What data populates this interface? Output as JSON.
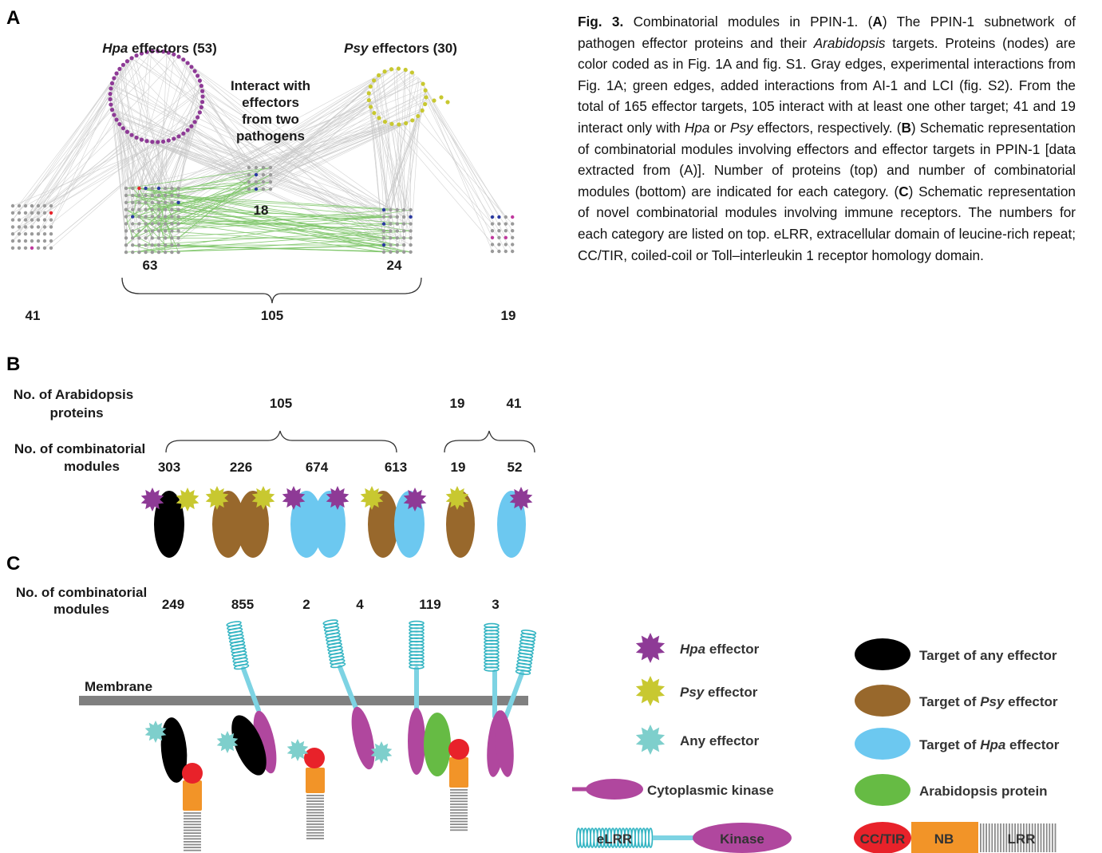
{
  "panels": {
    "a": "A",
    "b": "B",
    "c": "C"
  },
  "panel_a": {
    "hpa_italic": "Hpa",
    "hpa_rest": " effectors (53)",
    "psy_italic": "Psy",
    "psy_rest": " effectors (30)",
    "interact_lines": [
      "Interact with",
      "effectors",
      "from two",
      "pathogens"
    ],
    "n18": "18",
    "n63": "63",
    "n24": "24",
    "n41": "41",
    "n105": "105",
    "n19": "19"
  },
  "panel_b": {
    "arab_lines": [
      "No. of Arabidopsis",
      "proteins"
    ],
    "mod_lines": [
      "No. of combinatorial",
      "modules"
    ],
    "top105": "105",
    "top19": "19",
    "top41": "41",
    "counts": [
      "303",
      "226",
      "674",
      "613",
      "19",
      "52"
    ]
  },
  "panel_c": {
    "mod_lines": [
      "No. of combinatorial",
      "modules"
    ],
    "counts": [
      "249",
      "855",
      "2",
      "4",
      "119",
      "3"
    ],
    "membrane": "Membrane"
  },
  "legend": {
    "hpa_italic": "Hpa",
    "hpa_rest": " effector",
    "psy_italic": "Psy",
    "psy_rest": " effector",
    "any": "Any effector",
    "kinase": "Cytoplasmic kinase",
    "elrr": "eLRR",
    "kinase_domain": "Kinase",
    "target_any": "Target of any effector",
    "target_psy_pre": "Target of ",
    "target_psy_italic": "Psy",
    "target_psy_post": " effector",
    "target_hpa_pre": "Target of ",
    "target_hpa_italic": "Hpa",
    "target_hpa_post": " effector",
    "arab": "Arabidopsis protein",
    "cctir": "CC/TIR",
    "nb": "NB",
    "lrr": "LRR"
  },
  "caption": {
    "fig": "Fig. 3.",
    "s1": " Combinatorial modules in PPIN-1. (",
    "a": "A",
    "s2": ") The PPIN-1 subnetwork of pathogen effector proteins and their ",
    "arab": "Arabidopsis",
    "s3": " targets. Proteins (nodes) are color coded as in Fig. 1A and fig. S1. Gray edges, experimental interactions from Fig. 1A; green edges, added interactions from AI-1 and LCI (fig. S2). From the total of 165 effector targets, 105 interact with at least one other target; 41 and 19 interact only with ",
    "hpa": "Hpa",
    "s4": " or ",
    "psy": "Psy",
    "s5": " effectors, respectively. (",
    "b": "B",
    "s6": ") Schematic representation of combinatorial modules involving effectors and effector targets in PPIN-1 [data extracted from (A)]. Number of proteins (top) and number of combinatorial modules (bottom) are indicated for each category. (",
    "c": "C",
    "s7": ") Schematic representation of novel combinatorial modules involving immune receptors. The numbers for each category are listed on top. eLRR, extracellular domain of leucine-rich repeat; CC/TIR, coiled-coil or Toll–interleukin 1 receptor homology domain."
  },
  "colors": {
    "hpa": "#8e3a96",
    "psy": "#c8c830",
    "any": "#7ecfcc",
    "black": "#000000",
    "brown": "#98682c",
    "blue": "#6cc8f0",
    "green": "#66bb44",
    "kinase": "#b0479e",
    "cctir": "#e8222a",
    "nb": "#f29428",
    "lrr": "#8a8a8a",
    "elrr": "#35b5c3",
    "gray_edge": "#c8c8c8",
    "green_edge": "#7fc66a"
  }
}
